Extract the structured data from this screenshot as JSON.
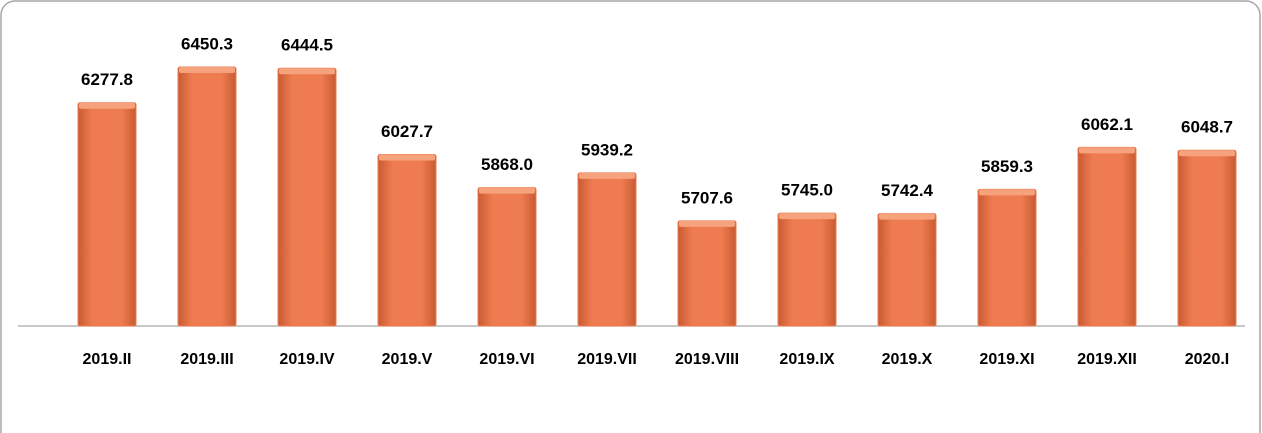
{
  "chart_data": {
    "type": "bar",
    "categories": [
      "2019.II",
      "2019.III",
      "2019.IV",
      "2019.V",
      "2019.VI",
      "2019.VII",
      "2019.VIII",
      "2019.IX",
      "2019.X",
      "2019.XI",
      "2019.XII",
      "2020.I"
    ],
    "values": [
      6277.8,
      6450.3,
      6444.5,
      6027.7,
      5868.0,
      5939.2,
      5707.6,
      5745.0,
      5742.4,
      5859.3,
      6062.1,
      6048.7
    ],
    "value_labels": [
      "6277.8",
      "6450.3",
      "6444.5",
      "6027.7",
      "5868.0",
      "5939.2",
      "5707.6",
      "5745.0",
      "5742.4",
      "5859.3",
      "6062.1",
      "6048.7"
    ],
    "color": "#ec7a4f",
    "ylim": [
      5200,
      6600
    ]
  }
}
